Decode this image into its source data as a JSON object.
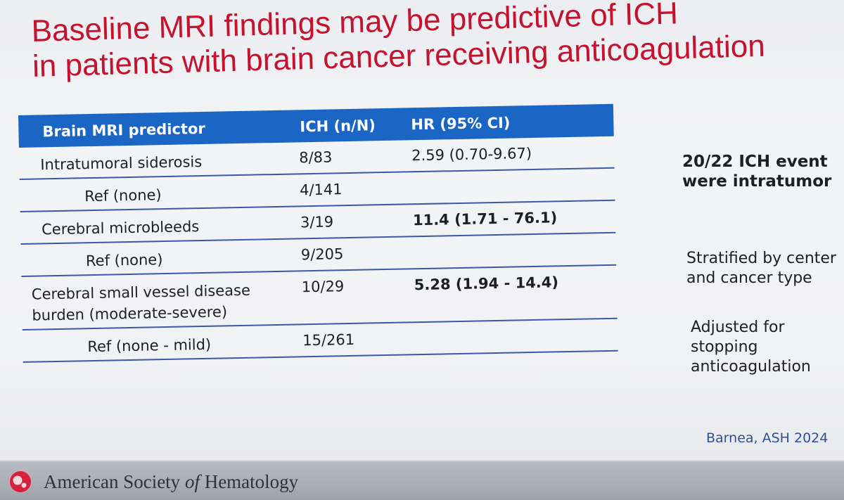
{
  "title": {
    "line1": "Baseline MRI findings may be predictive of ICH",
    "line2": "in patients with brain cancer receiving anticoagulation"
  },
  "table": {
    "headers": [
      "Brain MRI predictor",
      "ICH (n/N)",
      "HR (95% CI)"
    ],
    "rows": [
      {
        "predictor": "Intratumoral siderosis",
        "ich": "8/83",
        "hr": "2.59 (0.70-9.67)"
      },
      {
        "predictor": "Ref (none)",
        "ich": "4/141",
        "hr": ""
      },
      {
        "predictor": "Cerebral microbleeds",
        "ich": "3/19",
        "hr": "11.4 (1.71 - 76.1)"
      },
      {
        "predictor": "Ref (none)",
        "ich": "9/205",
        "hr": ""
      },
      {
        "predictor_line1": "Cerebral small vessel disease",
        "predictor_line2": "burden (moderate-severe)",
        "ich": "10/29",
        "hr": "5.28 (1.94 - 14.4)"
      },
      {
        "predictor": "Ref (none - mild)",
        "ich": "15/261",
        "hr": ""
      }
    ]
  },
  "side_notes": {
    "events_line1": "20/22 ICH event",
    "events_line2": "were intratumor",
    "stratified_line1": "Stratified by center",
    "stratified_line2": "and cancer type",
    "adjusted_line1": "Adjusted for",
    "adjusted_line2": "stopping",
    "adjusted_line3": "anticoagulation"
  },
  "citation": "Barnea, ASH 2024",
  "footer": {
    "org_part1": "American Society ",
    "org_part2": "of",
    "org_part3": " Hematology"
  },
  "colors": {
    "title": "#c4122f",
    "table_header": "#1b66c4",
    "row_rule": "#3a5aa8",
    "citation": "#2e4f9a"
  }
}
